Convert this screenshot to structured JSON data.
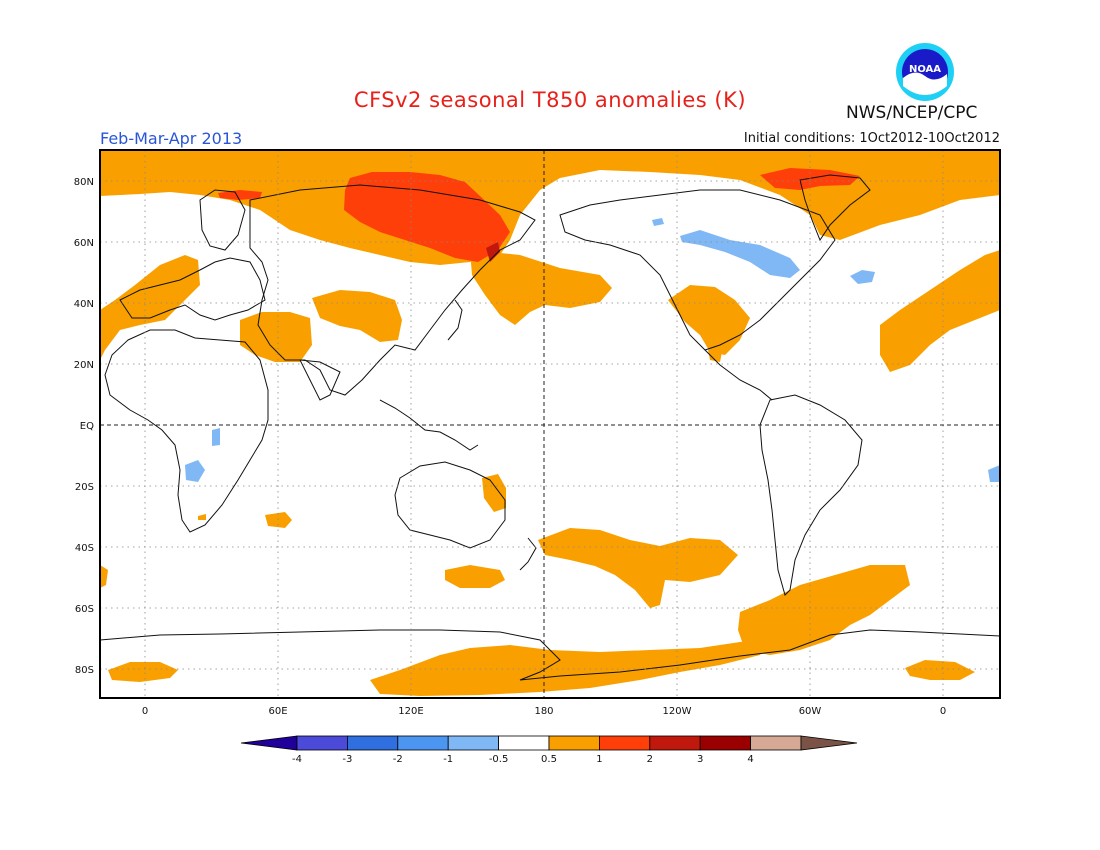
{
  "header": {
    "title": "CFSv2 seasonal T850 anomalies (K)",
    "season": "Feb-Mar-Apr 2013",
    "initial_conditions": "Initial conditions: 1Oct2012-10Oct2012",
    "agency": "NWS/NCEP/CPC",
    "logo_text": "NOAA"
  },
  "map": {
    "lat_labels": [
      "80N",
      "60N",
      "40N",
      "20N",
      "EQ",
      "20S",
      "40S",
      "60S",
      "80S"
    ],
    "lon_labels": [
      "0",
      "60E",
      "120E",
      "180",
      "120W",
      "60W",
      "0"
    ],
    "colors": {
      "warm_0_5_1": "#f9a000",
      "warm_1_2": "#ff3f0a",
      "warm_2_3": "#c0180c",
      "cool_m1_m0_5": "#80b8f5"
    }
  },
  "colorbar": {
    "ticks": [
      "-4",
      "-3",
      "-2",
      "-1",
      "-0.5",
      "0.5",
      "1",
      "2",
      "3",
      "4"
    ],
    "colors": [
      "#20009a",
      "#4c4ad8",
      "#2f6fe0",
      "#4c95f0",
      "#80b8f5",
      "#ffffff",
      "#f9a000",
      "#ff3f0a",
      "#c0180c",
      "#9a0000",
      "#d6a995",
      "#7a5346"
    ]
  }
}
